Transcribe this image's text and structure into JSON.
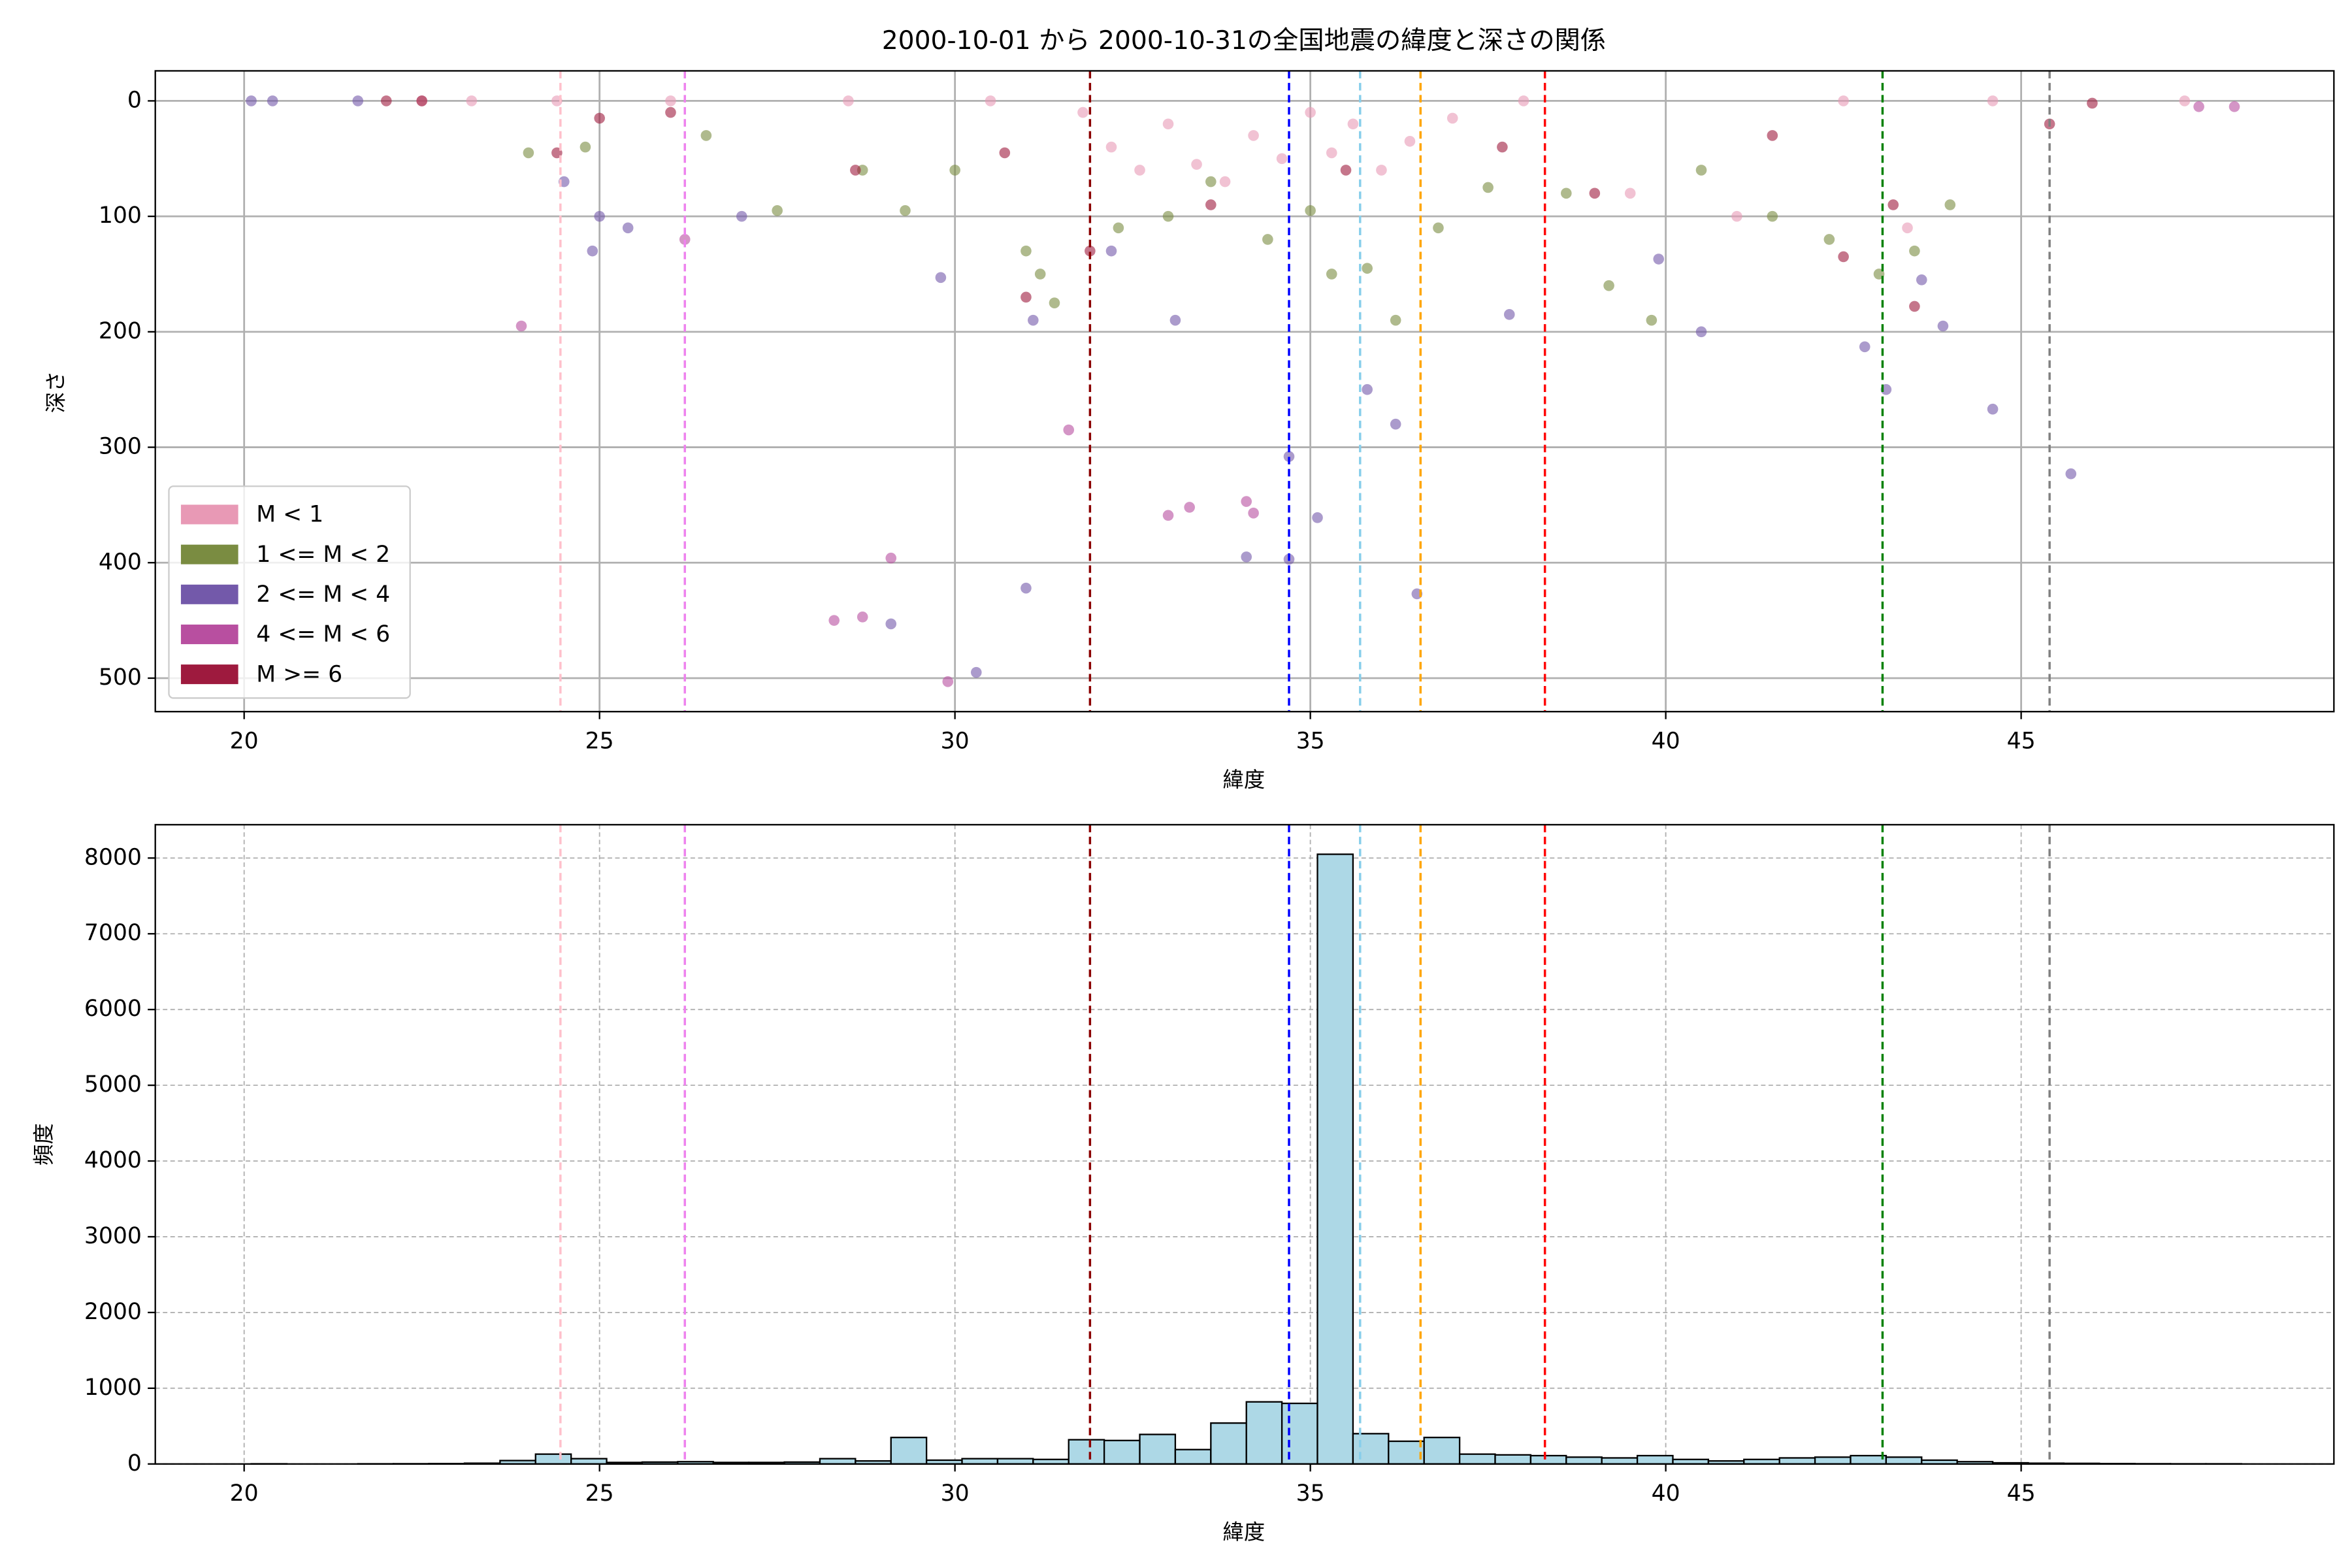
{
  "chart_data": [
    {
      "type": "scatter",
      "title": "2000-10-01 から 2000-10-31の全国地震の緯度と深さの関係",
      "x_label": "緯度",
      "y_label": "深さ",
      "xlim": [
        18.75,
        49.4
      ],
      "xticks": [
        20,
        25,
        30,
        35,
        40,
        45
      ],
      "ylim": [
        529,
        -26
      ],
      "yticks": [
        0,
        100,
        200,
        300,
        400,
        500
      ],
      "grid": true,
      "grid_linestyle": "solid",
      "legend": "lower left",
      "alpha": 0.6,
      "vlines": [
        {
          "x": 24.45,
          "color": "pink"
        },
        {
          "x": 26.2,
          "color": "violet"
        },
        {
          "x": 31.9,
          "color": "darkred"
        },
        {
          "x": 34.7,
          "color": "blue"
        },
        {
          "x": 35.7,
          "color": "skyblue"
        },
        {
          "x": 36.55,
          "color": "orange"
        },
        {
          "x": 38.3,
          "color": "red"
        },
        {
          "x": 43.05,
          "color": "green"
        },
        {
          "x": 45.4,
          "color": "gray"
        }
      ],
      "series": [
        {
          "name": "M < 1",
          "color": "#e899b5",
          "x": [
            22.5,
            23.2,
            24.4,
            26.0,
            28.5,
            30.5,
            31.8,
            32.2,
            32.6,
            33.0,
            33.4,
            33.8,
            34.2,
            34.6,
            35.0,
            35.3,
            35.6,
            36.0,
            36.4,
            37.0,
            38.0,
            39.5,
            41.0,
            42.5,
            43.4,
            44.6,
            47.3
          ],
          "values": [
            0,
            0,
            0,
            0,
            0,
            0,
            10,
            40,
            60,
            20,
            55,
            70,
            30,
            50,
            10,
            45,
            20,
            60,
            35,
            15,
            0,
            80,
            100,
            0,
            110,
            0,
            0
          ]
        },
        {
          "name": "1 <= M < 2",
          "color": "#7a8c41",
          "x": [
            24.0,
            24.8,
            26.5,
            27.5,
            28.7,
            29.3,
            30.0,
            31.0,
            31.2,
            31.4,
            32.3,
            33.0,
            33.6,
            34.4,
            35.0,
            35.3,
            35.8,
            36.2,
            36.8,
            37.5,
            38.6,
            39.2,
            39.8,
            40.5,
            41.5,
            42.3,
            43.0,
            43.5,
            44.0
          ],
          "values": [
            45,
            40,
            30,
            95,
            60,
            95,
            60,
            130,
            150,
            175,
            110,
            100,
            70,
            120,
            95,
            150,
            145,
            190,
            110,
            75,
            80,
            160,
            190,
            60,
            100,
            120,
            150,
            130,
            90
          ]
        },
        {
          "name": "2 <= M < 4",
          "color": "#7359aa",
          "x": [
            20.1,
            20.4,
            21.6,
            24.5,
            24.9,
            25.0,
            25.4,
            27.0,
            29.1,
            29.8,
            30.3,
            31.0,
            31.1,
            32.2,
            33.1,
            34.1,
            34.7,
            34.7,
            35.1,
            35.8,
            36.2,
            36.5,
            37.8,
            39.9,
            40.5,
            42.8,
            43.1,
            43.6,
            43.9,
            44.6,
            45.7
          ],
          "values": [
            0,
            0,
            0,
            70,
            130,
            100,
            110,
            100,
            453,
            153,
            495,
            422,
            190,
            130,
            190,
            395,
            308,
            397,
            361,
            250,
            280,
            427,
            185,
            137,
            200,
            213,
            250,
            155,
            195,
            267,
            323
          ]
        },
        {
          "name": "4 <= M < 6",
          "color": "#b84fa0",
          "x": [
            23.9,
            26.2,
            28.3,
            28.7,
            29.1,
            29.9,
            31.6,
            33.0,
            33.3,
            34.1,
            34.2,
            47.5,
            48.0
          ],
          "values": [
            195,
            120,
            450,
            447,
            396,
            503,
            285,
            359,
            352,
            347,
            357,
            5,
            5
          ]
        },
        {
          "name": "M >= 6",
          "color": "#9e1a3e",
          "x": [
            22.0,
            22.5,
            24.4,
            25.0,
            26.0,
            28.6,
            30.7,
            31.0,
            31.9,
            33.6,
            35.5,
            37.7,
            39.0,
            41.5,
            42.5,
            43.2,
            43.5,
            45.4,
            46.0
          ],
          "values": [
            0,
            0,
            45,
            15,
            10,
            60,
            45,
            170,
            130,
            90,
            60,
            40,
            80,
            30,
            135,
            90,
            178,
            20,
            2
          ]
        }
      ]
    },
    {
      "type": "histogram",
      "x_label": "緯度",
      "y_label": "頻度",
      "xlim": [
        18.75,
        49.4
      ],
      "xticks": [
        20,
        25,
        30,
        35,
        40,
        45
      ],
      "ylim": [
        0,
        8440
      ],
      "yticks": [
        0,
        1000,
        2000,
        3000,
        4000,
        5000,
        6000,
        7000,
        8000
      ],
      "grid": true,
      "grid_linestyle": "dashed",
      "color": "#add8e6",
      "edgecolor": "#000000",
      "vlines": [
        {
          "x": 24.45,
          "color": "pink"
        },
        {
          "x": 26.2,
          "color": "violet"
        },
        {
          "x": 31.9,
          "color": "darkred"
        },
        {
          "x": 34.7,
          "color": "blue"
        },
        {
          "x": 35.7,
          "color": "skyblue"
        },
        {
          "x": 36.55,
          "color": "orange"
        },
        {
          "x": 38.3,
          "color": "red"
        },
        {
          "x": 43.05,
          "color": "green"
        },
        {
          "x": 45.4,
          "color": "gray"
        }
      ],
      "bins": [
        20.1,
        20.6,
        21.1,
        21.6,
        22.1,
        22.6,
        23.1,
        23.6,
        24.1,
        24.6,
        25.1,
        25.6,
        26.1,
        26.6,
        27.1,
        27.6,
        28.1,
        28.6,
        29.1,
        29.6,
        30.1,
        30.6,
        31.1,
        31.6,
        32.1,
        32.6,
        33.1,
        33.6,
        34.1,
        34.6,
        35.1,
        35.6,
        36.1,
        36.6,
        37.1,
        37.6,
        38.1,
        38.6,
        39.1,
        39.6,
        40.1,
        40.6,
        41.1,
        41.6,
        42.1,
        42.6,
        43.1,
        43.6,
        44.1,
        44.6,
        45.1,
        45.6,
        46.1,
        46.6,
        47.1,
        47.6,
        48.1
      ],
      "values": [
        2,
        0,
        0,
        2,
        3,
        5,
        10,
        45,
        130,
        70,
        20,
        25,
        30,
        20,
        20,
        25,
        70,
        40,
        350,
        50,
        70,
        70,
        60,
        320,
        310,
        390,
        190,
        540,
        820,
        800,
        8050,
        400,
        300,
        350,
        130,
        120,
        110,
        90,
        80,
        110,
        60,
        40,
        60,
        80,
        90,
        110,
        90,
        50,
        30,
        15,
        10,
        8,
        5,
        3,
        2,
        2
      ]
    }
  ]
}
